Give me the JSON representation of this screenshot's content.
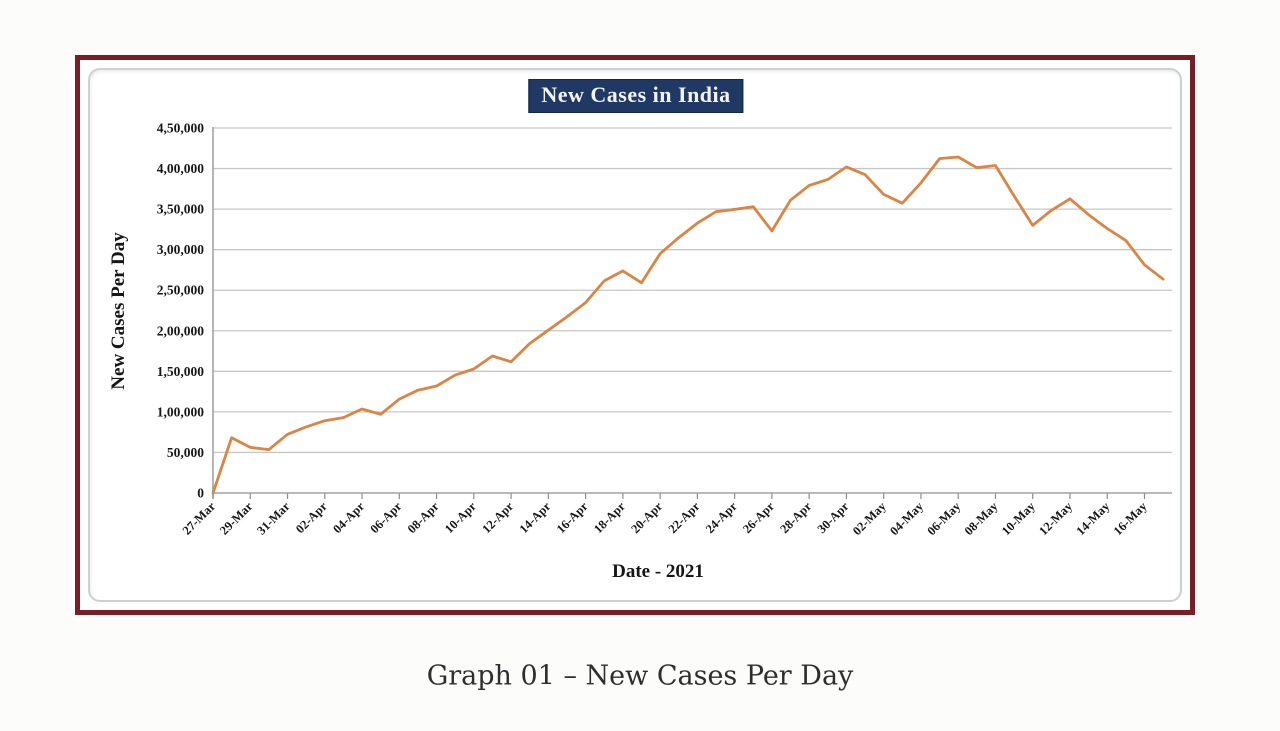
{
  "page": {
    "caption": "Graph 01 – New Cases Per Day"
  },
  "chart": {
    "title": "New Cases in India",
    "x_axis_title": "Date - 2021",
    "y_axis_title": "New Cases Per Day",
    "colors": {
      "frame_border": "#7b1d26",
      "title_background": "#1f3864",
      "title_text": "#f2f4fa",
      "line": "#db8443",
      "gridline": "#c7c7c7",
      "axis": "#a3a3a3",
      "tick_mark": "#8c8c8c",
      "tick_text": "#161616"
    }
  },
  "chart_data": {
    "type": "line",
    "title": "New Cases in India",
    "xlabel": "Date - 2021",
    "ylabel": "New Cases Per Day",
    "ylim": [
      0,
      450000
    ],
    "y_tick_interval": 50000,
    "y_tick_labels": [
      "0",
      "50,000",
      "1,00,000",
      "1,50,000",
      "2,00,000",
      "2,50,000",
      "3,00,000",
      "3,50,000",
      "4,00,000",
      "4,50,000"
    ],
    "x_tick_labels": [
      "27-Mar",
      "29-Mar",
      "31-Mar",
      "02-Apr",
      "04-Apr",
      "06-Apr",
      "08-Apr",
      "10-Apr",
      "12-Apr",
      "14-Apr",
      "16-Apr",
      "18-Apr",
      "20-Apr",
      "22-Apr",
      "24-Apr",
      "26-Apr",
      "28-Apr",
      "30-Apr",
      "02-May",
      "04-May",
      "06-May",
      "08-May",
      "10-May",
      "12-May",
      "14-May",
      "16-May"
    ],
    "grid": true,
    "legend": false,
    "x": [
      "27-Mar",
      "28-Mar",
      "29-Mar",
      "30-Mar",
      "31-Mar",
      "01-Apr",
      "02-Apr",
      "03-Apr",
      "04-Apr",
      "05-Apr",
      "06-Apr",
      "07-Apr",
      "08-Apr",
      "09-Apr",
      "10-Apr",
      "11-Apr",
      "12-Apr",
      "13-Apr",
      "14-Apr",
      "15-Apr",
      "16-Apr",
      "17-Apr",
      "18-Apr",
      "19-Apr",
      "20-Apr",
      "21-Apr",
      "22-Apr",
      "23-Apr",
      "24-Apr",
      "25-Apr",
      "26-Apr",
      "27-Apr",
      "28-Apr",
      "29-Apr",
      "30-Apr",
      "01-May",
      "02-May",
      "03-May",
      "04-May",
      "05-May",
      "06-May",
      "07-May",
      "08-May",
      "09-May",
      "10-May",
      "11-May",
      "12-May",
      "13-May",
      "14-May",
      "15-May",
      "16-May",
      "17-May"
    ],
    "values": [
      0,
      68020,
      56211,
      53480,
      72330,
      81466,
      89129,
      92998,
      103558,
      96982,
      115736,
      126789,
      131968,
      145384,
      152879,
      168912,
      161736,
      184372,
      200739,
      217353,
      234692,
      261500,
      273810,
      259170,
      295041,
      314835,
      332730,
      346786,
      349691,
      352991,
      323144,
      360960,
      379257,
      386452,
      401993,
      392488,
      368147,
      357229,
      382315,
      412262,
      414188,
      401078,
      403738,
      366161,
      329942,
      348421,
      362727,
      343144,
      326098,
      311170,
      281386,
      263533
    ],
    "series": [
      {
        "name": "New Cases Per Day",
        "values_note": "single unlabeled orange series"
      }
    ]
  }
}
